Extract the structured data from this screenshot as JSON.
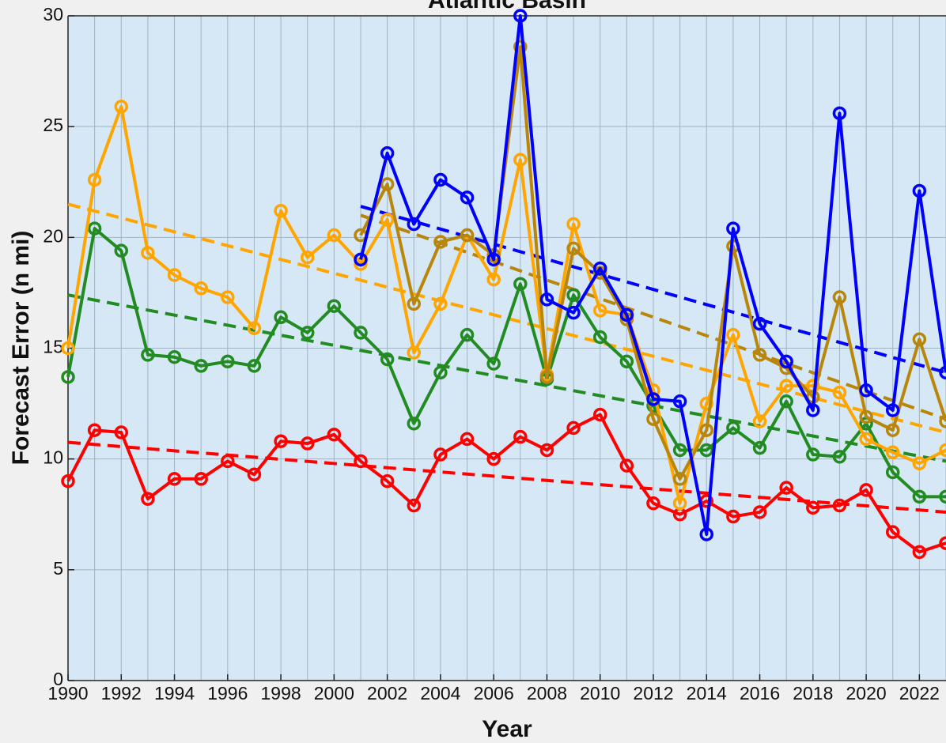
{
  "chart_data": {
    "type": "line",
    "title": "Atlantic Basin",
    "xlabel": "Year",
    "ylabel": "Forecast Error (n mi)",
    "x": [
      1990,
      1991,
      1992,
      1993,
      1994,
      1995,
      1996,
      1997,
      1998,
      1999,
      2000,
      2001,
      2002,
      2003,
      2004,
      2005,
      2006,
      2007,
      2008,
      2009,
      2010,
      2011,
      2012,
      2013,
      2014,
      2015,
      2016,
      2017,
      2018,
      2019,
      2020,
      2021,
      2022,
      2023
    ],
    "series": [
      {
        "color": "#ff0000",
        "values": [
          9.0,
          11.3,
          11.2,
          8.2,
          9.1,
          9.1,
          9.9,
          9.3,
          10.8,
          10.7,
          11.1,
          9.9,
          9.0,
          7.9,
          10.2,
          10.9,
          10.0,
          11.0,
          10.4,
          11.4,
          12.0,
          9.7,
          8.0,
          7.5,
          8.1,
          7.4,
          7.6,
          8.7,
          7.8,
          7.9,
          8.6,
          6.7,
          5.8,
          6.2
        ]
      },
      {
        "color": "#228b22",
        "values": [
          13.7,
          20.4,
          19.4,
          14.7,
          14.6,
          14.2,
          14.4,
          14.2,
          16.4,
          15.7,
          16.9,
          15.7,
          14.5,
          11.6,
          13.9,
          15.6,
          14.3,
          17.9,
          13.6,
          17.4,
          15.5,
          14.4,
          12.4,
          10.4,
          10.4,
          11.4,
          10.5,
          12.6,
          10.2,
          10.1,
          11.6,
          9.4,
          8.3,
          8.3
        ]
      },
      {
        "color": "#ffa500",
        "values": [
          15.0,
          22.6,
          25.9,
          19.3,
          18.3,
          17.7,
          17.3,
          15.9,
          21.2,
          19.1,
          20.1,
          18.8,
          20.8,
          14.8,
          17.0,
          20.1,
          18.1,
          23.5,
          13.8,
          20.6,
          16.7,
          16.5,
          13.1,
          8.0,
          12.5,
          15.6,
          11.7,
          13.3,
          13.3,
          13.0,
          10.9,
          10.3,
          9.8,
          10.4
        ]
      },
      {
        "color": "#b8860b",
        "values": [
          null,
          null,
          null,
          null,
          null,
          null,
          null,
          null,
          null,
          null,
          null,
          20.1,
          22.4,
          17.0,
          19.8,
          20.1,
          19.2,
          28.6,
          13.7,
          19.5,
          18.4,
          16.3,
          11.8,
          9.1,
          11.3,
          19.6,
          14.7,
          14.1,
          12.8,
          17.3,
          11.9,
          11.3,
          15.4,
          11.7
        ]
      },
      {
        "color": "#0000ff",
        "values": [
          null,
          null,
          null,
          null,
          null,
          null,
          null,
          null,
          null,
          null,
          null,
          19.0,
          23.8,
          20.6,
          22.6,
          21.8,
          19.0,
          30.0,
          17.2,
          16.6,
          18.6,
          16.5,
          12.7,
          12.6,
          6.6,
          20.4,
          16.1,
          14.4,
          12.2,
          25.6,
          13.1,
          12.2,
          22.1,
          13.9
        ]
      }
    ],
    "trends": [
      {
        "color": "#ff0000",
        "x": [
          1990,
          2023
        ],
        "values": [
          10.75,
          7.6
        ]
      },
      {
        "color": "#228b22",
        "x": [
          1990,
          2023
        ],
        "values": [
          17.4,
          9.9
        ]
      },
      {
        "color": "#ffa500",
        "x": [
          1990,
          2023
        ],
        "values": [
          21.5,
          11.2
        ]
      },
      {
        "color": "#b8860b",
        "x": [
          2001,
          2023
        ],
        "values": [
          21.0,
          11.8
        ]
      },
      {
        "color": "#0000ff",
        "x": [
          2001,
          2023
        ],
        "values": [
          21.4,
          13.9
        ]
      }
    ],
    "xlim": [
      1990,
      2023
    ],
    "ylim": [
      0,
      30
    ],
    "xticks": [
      1990,
      1992,
      1994,
      1996,
      1998,
      2000,
      2002,
      2004,
      2006,
      2008,
      2010,
      2012,
      2014,
      2016,
      2018,
      2020,
      2022
    ],
    "yticks": [
      0,
      5,
      10,
      15,
      20,
      25,
      30
    ],
    "grid": true
  }
}
